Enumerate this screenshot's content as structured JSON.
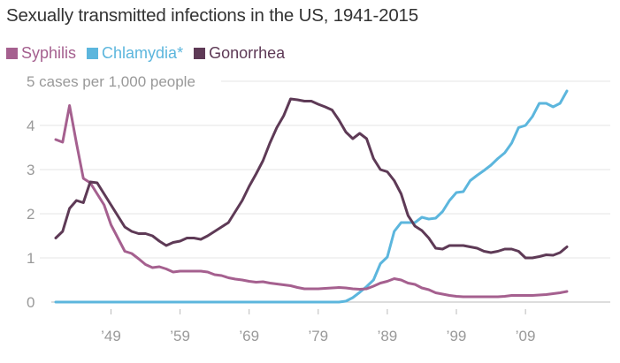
{
  "chart_data": {
    "type": "line",
    "title": "Sexually transmitted infections in the US, 1941-2015",
    "ylabel_first_tick": "5 cases per 1,000 people",
    "xlabel": "",
    "ylim": [
      0,
      5
    ],
    "xlim": [
      1941,
      2015
    ],
    "y_ticks": [
      {
        "value": 0,
        "label": "0"
      },
      {
        "value": 1,
        "label": "1"
      },
      {
        "value": 2,
        "label": "2"
      },
      {
        "value": 3,
        "label": "3"
      },
      {
        "value": 4,
        "label": "4"
      },
      {
        "value": 5,
        "label": "5 cases per 1,000 people"
      }
    ],
    "x_ticks": [
      {
        "value": 1949,
        "label": "’49"
      },
      {
        "value": 1959,
        "label": "’59"
      },
      {
        "value": 1969,
        "label": "’69"
      },
      {
        "value": 1979,
        "label": "’79"
      },
      {
        "value": 1989,
        "label": "’89"
      },
      {
        "value": 1999,
        "label": "’99"
      },
      {
        "value": 2009,
        "label": "’09"
      }
    ],
    "grid": true,
    "legend_placement": "top-left",
    "series": [
      {
        "name": "Syphilis",
        "color": "#a5608f",
        "x": [
          1941,
          1942,
          1943,
          1944,
          1945,
          1946,
          1947,
          1948,
          1949,
          1950,
          1951,
          1952,
          1953,
          1954,
          1955,
          1956,
          1957,
          1958,
          1959,
          1960,
          1961,
          1962,
          1963,
          1964,
          1965,
          1966,
          1967,
          1968,
          1969,
          1970,
          1971,
          1972,
          1973,
          1974,
          1975,
          1976,
          1977,
          1978,
          1979,
          1980,
          1981,
          1982,
          1983,
          1984,
          1985,
          1986,
          1987,
          1988,
          1989,
          1990,
          1991,
          1992,
          1993,
          1994,
          1995,
          1996,
          1997,
          1998,
          1999,
          2000,
          2001,
          2002,
          2003,
          2004,
          2005,
          2006,
          2007,
          2008,
          2009,
          2010,
          2011,
          2012,
          2013,
          2014,
          2015
        ],
        "values": [
          3.68,
          3.62,
          4.45,
          3.6,
          2.8,
          2.7,
          2.45,
          2.2,
          1.75,
          1.45,
          1.15,
          1.1,
          0.98,
          0.85,
          0.78,
          0.8,
          0.75,
          0.68,
          0.7,
          0.7,
          0.7,
          0.7,
          0.68,
          0.62,
          0.6,
          0.55,
          0.52,
          0.5,
          0.47,
          0.45,
          0.46,
          0.43,
          0.41,
          0.39,
          0.37,
          0.33,
          0.3,
          0.3,
          0.3,
          0.31,
          0.32,
          0.33,
          0.32,
          0.3,
          0.29,
          0.3,
          0.36,
          0.43,
          0.47,
          0.53,
          0.5,
          0.43,
          0.4,
          0.32,
          0.28,
          0.21,
          0.18,
          0.15,
          0.13,
          0.12,
          0.12,
          0.12,
          0.12,
          0.12,
          0.12,
          0.13,
          0.15,
          0.15,
          0.15,
          0.15,
          0.16,
          0.17,
          0.19,
          0.21,
          0.24
        ]
      },
      {
        "name": "Chlamydia*",
        "color": "#5cb6dd",
        "x": [
          1941,
          1950,
          1960,
          1970,
          1981,
          1982,
          1983,
          1984,
          1985,
          1986,
          1987,
          1988,
          1989,
          1990,
          1991,
          1992,
          1993,
          1994,
          1995,
          1996,
          1997,
          1998,
          1999,
          2000,
          2001,
          2002,
          2003,
          2004,
          2005,
          2006,
          2007,
          2008,
          2009,
          2010,
          2011,
          2012,
          2013,
          2014,
          2015
        ],
        "values": [
          0,
          0,
          0,
          0,
          0,
          0,
          0.02,
          0.1,
          0.22,
          0.35,
          0.5,
          0.87,
          1.02,
          1.6,
          1.8,
          1.8,
          1.8,
          1.92,
          1.88,
          1.9,
          2.05,
          2.3,
          2.48,
          2.5,
          2.75,
          2.87,
          2.98,
          3.1,
          3.25,
          3.38,
          3.6,
          3.95,
          4.0,
          4.2,
          4.5,
          4.5,
          4.42,
          4.5,
          4.78
        ]
      },
      {
        "name": "Gonorrhea",
        "color": "#5e3a56",
        "x": [
          1941,
          1942,
          1943,
          1944,
          1945,
          1946,
          1947,
          1948,
          1949,
          1950,
          1951,
          1952,
          1953,
          1954,
          1955,
          1956,
          1957,
          1958,
          1959,
          1960,
          1961,
          1962,
          1963,
          1964,
          1965,
          1966,
          1967,
          1968,
          1969,
          1970,
          1971,
          1972,
          1973,
          1974,
          1975,
          1976,
          1977,
          1978,
          1979,
          1980,
          1981,
          1982,
          1983,
          1984,
          1985,
          1986,
          1987,
          1988,
          1989,
          1990,
          1991,
          1992,
          1993,
          1994,
          1995,
          1996,
          1997,
          1998,
          1999,
          2000,
          2001,
          2002,
          2003,
          2004,
          2005,
          2006,
          2007,
          2008,
          2009,
          2010,
          2011,
          2012,
          2013,
          2014,
          2015
        ],
        "values": [
          1.45,
          1.6,
          2.12,
          2.3,
          2.25,
          2.72,
          2.7,
          2.45,
          2.2,
          1.95,
          1.7,
          1.6,
          1.55,
          1.55,
          1.5,
          1.38,
          1.28,
          1.35,
          1.38,
          1.45,
          1.45,
          1.42,
          1.5,
          1.6,
          1.7,
          1.8,
          2.05,
          2.3,
          2.62,
          2.9,
          3.2,
          3.6,
          3.95,
          4.22,
          4.6,
          4.58,
          4.55,
          4.55,
          4.48,
          4.42,
          4.35,
          4.12,
          3.85,
          3.7,
          3.82,
          3.7,
          3.25,
          3.0,
          2.95,
          2.75,
          2.45,
          1.96,
          1.72,
          1.62,
          1.45,
          1.22,
          1.2,
          1.28,
          1.28,
          1.28,
          1.25,
          1.22,
          1.15,
          1.12,
          1.15,
          1.2,
          1.2,
          1.15,
          1.0,
          1.0,
          1.03,
          1.07,
          1.06,
          1.12,
          1.25
        ]
      }
    ]
  }
}
